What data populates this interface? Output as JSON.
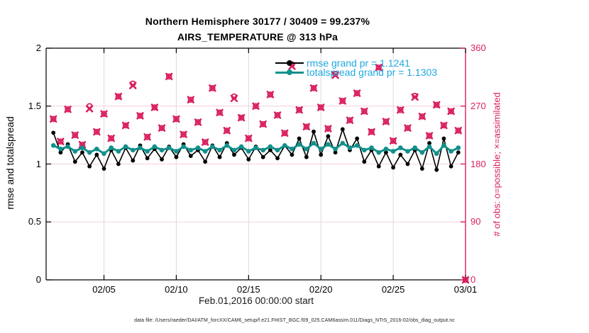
{
  "header": {
    "title_line1": "Northern Hemisphere 30177 / 30409 = 99.237%",
    "title_line2": "AIRS_TEMPERATURE @ 313 hPa"
  },
  "axes": {
    "left": {
      "label": "rmse and totalspread",
      "ticks": [
        {
          "label": "0",
          "value": 0
        },
        {
          "label": "0.5",
          "value": 0.5
        },
        {
          "label": "1",
          "value": 1
        },
        {
          "label": "1.5",
          "value": 1.5
        },
        {
          "label": "2",
          "value": 2
        }
      ]
    },
    "right": {
      "label": "# of obs: o=possible; ×=assimilated",
      "ticks": [
        {
          "label": "0",
          "value": 0
        },
        {
          "label": "90",
          "value": 90
        },
        {
          "label": "180",
          "value": 180
        },
        {
          "label": "270",
          "value": 270
        },
        {
          "label": "360",
          "value": 360
        }
      ]
    },
    "x": {
      "label": "Feb.01,2016 00:00:00 start",
      "ticks": [
        {
          "label": "02/05",
          "day": 4
        },
        {
          "label": "02/10",
          "day": 9
        },
        {
          "label": "02/15",
          "day": 14
        },
        {
          "label": "02/20",
          "day": 19
        },
        {
          "label": "02/25",
          "day": 24
        },
        {
          "label": "03/01",
          "day": 29
        }
      ]
    }
  },
  "legend": {
    "rmse_label": "rmse grand pr = 1.1241",
    "totalspread_label": "totalspread grand pr = 1.1303",
    "text_color": "#1FA8DF"
  },
  "footer": {
    "datafile": "data file: /Users/raeder/DAI/ATM_forcXX/CAM6_setup/f.e21.FHIST_BGC.f09_025.CAM6assim.011/Diags_NTrS_2016-02/obs_diag_output.nc"
  },
  "colors": {
    "rmse": "#000000",
    "totalspread": "#12908B",
    "obs": "#D81F5F",
    "grid_vertical": "#DCDCDC",
    "grid_horizontal": "#F6CFDC",
    "legend_text": "#1FA8DF"
  },
  "chart_data": {
    "type": "line",
    "title": "Northern Hemisphere 30177 / 30409 = 99.237% — AIRS_TEMPERATURE @ 313 hPa",
    "xlabel": "Feb.01,2016 00:00:00 start",
    "ylabel_left": "rmse and totalspread",
    "ylabel_right": "# of obs: o=possible; ×=assimilated",
    "x_range_days": [
      0,
      29
    ],
    "ylim_left": [
      0,
      2
    ],
    "ylim_right": [
      0,
      360
    ],
    "grid": true,
    "legend_position": "upper-right-inside",
    "obs_possible_total": 30409,
    "obs_assimilated_total": 30177,
    "percent_assimilated": 99.237,
    "rmse_grand_mean": 1.1241,
    "totalspread_grand_mean": 1.1303,
    "time_days": [
      0.5,
      1.0,
      1.5,
      2.0,
      2.5,
      3.0,
      3.5,
      4.0,
      4.5,
      5.0,
      5.5,
      6.0,
      6.5,
      7.0,
      7.5,
      8.0,
      8.5,
      9.0,
      9.5,
      10.0,
      10.5,
      11.0,
      11.5,
      12.0,
      12.5,
      13.0,
      13.5,
      14.0,
      14.5,
      15.0,
      15.5,
      16.0,
      16.5,
      17.0,
      17.5,
      18.0,
      18.5,
      19.0,
      19.5,
      20.0,
      20.5,
      21.0,
      21.5,
      22.0,
      22.5,
      23.0,
      23.5,
      24.0,
      24.5,
      25.0,
      25.5,
      26.0,
      26.5,
      27.0,
      27.5,
      28.0,
      28.5
    ],
    "series": [
      {
        "name": "rmse",
        "values": [
          1.27,
          1.1,
          1.17,
          1.02,
          1.1,
          0.98,
          1.08,
          0.96,
          1.12,
          1.0,
          1.14,
          1.03,
          1.16,
          1.05,
          1.13,
          1.04,
          1.15,
          1.06,
          1.17,
          1.07,
          1.12,
          1.02,
          1.16,
          1.06,
          1.18,
          1.08,
          1.14,
          1.04,
          1.15,
          1.06,
          1.12,
          1.05,
          1.16,
          1.08,
          1.22,
          1.06,
          1.28,
          1.08,
          1.24,
          1.1,
          1.3,
          1.12,
          1.22,
          1.02,
          1.12,
          0.98,
          1.1,
          0.97,
          1.08,
          1.0,
          1.12,
          0.96,
          1.18,
          0.95,
          1.22,
          0.98,
          1.1
        ]
      },
      {
        "name": "totalspread",
        "values": [
          1.16,
          1.13,
          1.15,
          1.11,
          1.14,
          1.1,
          1.13,
          1.09,
          1.14,
          1.11,
          1.15,
          1.12,
          1.14,
          1.11,
          1.15,
          1.12,
          1.14,
          1.11,
          1.15,
          1.12,
          1.14,
          1.11,
          1.15,
          1.12,
          1.16,
          1.12,
          1.15,
          1.11,
          1.14,
          1.12,
          1.15,
          1.12,
          1.16,
          1.13,
          1.17,
          1.13,
          1.18,
          1.13,
          1.17,
          1.13,
          1.18,
          1.14,
          1.16,
          1.12,
          1.14,
          1.1,
          1.13,
          1.11,
          1.14,
          1.11,
          1.14,
          1.1,
          1.15,
          1.09,
          1.16,
          1.11,
          1.14
        ]
      }
    ],
    "obs_counts": {
      "time_days": [
        0.5,
        1.0,
        1.5,
        2.0,
        2.5,
        3.0,
        3.5,
        4.0,
        4.5,
        5.0,
        5.5,
        6.0,
        6.5,
        7.0,
        7.5,
        8.0,
        8.5,
        9.0,
        9.5,
        10.0,
        10.5,
        11.0,
        11.5,
        12.0,
        12.5,
        13.0,
        13.5,
        14.0,
        14.5,
        15.0,
        15.5,
        16.0,
        16.5,
        17.0,
        17.5,
        18.0,
        18.5,
        19.0,
        19.5,
        20.0,
        20.5,
        21.0,
        21.5,
        22.0,
        22.5,
        23.0,
        23.5,
        24.0,
        24.5,
        25.0,
        25.5,
        26.0,
        26.5,
        27.0,
        27.5,
        28.0,
        28.5,
        29.0
      ],
      "possible": [
        250,
        215,
        265,
        225,
        210,
        270,
        230,
        258,
        220,
        285,
        240,
        305,
        255,
        222,
        268,
        236,
        316,
        250,
        226,
        280,
        245,
        214,
        298,
        260,
        232,
        285,
        252,
        220,
        270,
        242,
        288,
        256,
        228,
        335,
        264,
        238,
        298,
        268,
        235,
        320,
        278,
        248,
        290,
        262,
        230,
        330,
        246,
        216,
        264,
        236,
        286,
        254,
        224,
        272,
        240,
        262,
        232,
        0
      ],
      "assimilated": [
        250,
        215,
        265,
        225,
        210,
        266,
        230,
        258,
        220,
        285,
        240,
        302,
        255,
        222,
        268,
        236,
        316,
        250,
        226,
        280,
        245,
        214,
        298,
        260,
        232,
        282,
        252,
        220,
        270,
        242,
        288,
        256,
        228,
        332,
        264,
        238,
        298,
        268,
        235,
        318,
        278,
        248,
        290,
        262,
        230,
        330,
        246,
        216,
        264,
        236,
        284,
        254,
        224,
        272,
        240,
        262,
        232,
        0
      ]
    }
  }
}
